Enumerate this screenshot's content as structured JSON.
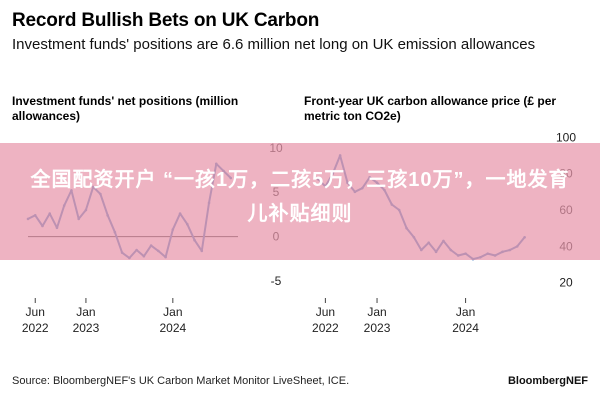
{
  "header": {
    "title": "Record Bullish Bets on UK Carbon",
    "subtitle": "Investment funds' positions are 6.6 million net long on UK emission allowances"
  },
  "overlay": {
    "text": "全国配资开户 “一孩1万，二孩5万，三孩10万”，一地发育儿补贴细则",
    "color": "#e896aa"
  },
  "footer": {
    "source": "Source: BloombergNEF's UK Carbon Market Monitor LiveSheet, ICE.",
    "brand": "BloombergNEF"
  },
  "colors": {
    "line": "#4f86c6",
    "zero_line": "#333333",
    "grid": "#e6e6e6"
  },
  "chart_data": [
    {
      "type": "line",
      "title": "Investment funds' net positions (million allowances)",
      "xlabel": "",
      "ylabel": "",
      "x_ticks": [
        "Jun\n2022",
        "Jan\n2023",
        "Jan\n2024"
      ],
      "y_ticks": [
        10,
        5,
        0,
        -5
      ],
      "ylim": [
        -6,
        12
      ],
      "xlim": [
        "2022-05",
        "2024-10"
      ],
      "series": [
        {
          "x": [
            "2022-05",
            "2022-06",
            "2022-07",
            "2022-08",
            "2022-09",
            "2022-10",
            "2022-11",
            "2022-12",
            "2023-01",
            "2023-02",
            "2023-03",
            "2023-04",
            "2023-05",
            "2023-06",
            "2023-07",
            "2023-08",
            "2023-09",
            "2023-10",
            "2023-11",
            "2023-12",
            "2024-01",
            "2024-02",
            "2024-03",
            "2024-04",
            "2024-05",
            "2024-06",
            "2024-07",
            "2024-08",
            "2024-09"
          ],
          "values": [
            2.0,
            2.4,
            1.2,
            2.6,
            1.0,
            3.5,
            5.2,
            2.0,
            3.0,
            5.6,
            4.8,
            2.4,
            0.5,
            -1.8,
            -2.4,
            -1.5,
            -2.2,
            -1.0,
            -1.6,
            -2.3,
            0.8,
            2.6,
            1.4,
            -0.4,
            -1.6,
            3.8,
            8.2,
            7.4,
            6.6
          ]
        }
      ]
    },
    {
      "type": "line",
      "title": "Front-year UK carbon allowance price (£ per metric ton CO2e)",
      "xlabel": "",
      "ylabel": "",
      "x_ticks": [
        "Jun\n2022",
        "Jan\n2023",
        "Jan\n2024"
      ],
      "y_ticks": [
        100,
        80,
        60,
        40,
        20
      ],
      "ylim": [
        16,
        104
      ],
      "xlim": [
        "2022-05",
        "2024-10"
      ],
      "series": [
        {
          "x": [
            "2022-05",
            "2022-06",
            "2022-07",
            "2022-08",
            "2022-09",
            "2022-10",
            "2022-11",
            "2022-12",
            "2023-01",
            "2023-02",
            "2023-03",
            "2023-04",
            "2023-05",
            "2023-06",
            "2023-07",
            "2023-08",
            "2023-09",
            "2023-10",
            "2023-11",
            "2023-12",
            "2024-01",
            "2024-02",
            "2024-03",
            "2024-04",
            "2024-05",
            "2024-06",
            "2024-07",
            "2024-08",
            "2024-09"
          ],
          "values": [
            77,
            73,
            80,
            90,
            75,
            70,
            72,
            78,
            75,
            71,
            63,
            60,
            50,
            45,
            38,
            42,
            37,
            43,
            38,
            35,
            36,
            33,
            34,
            36,
            35,
            37,
            38,
            40,
            45
          ]
        }
      ]
    }
  ]
}
